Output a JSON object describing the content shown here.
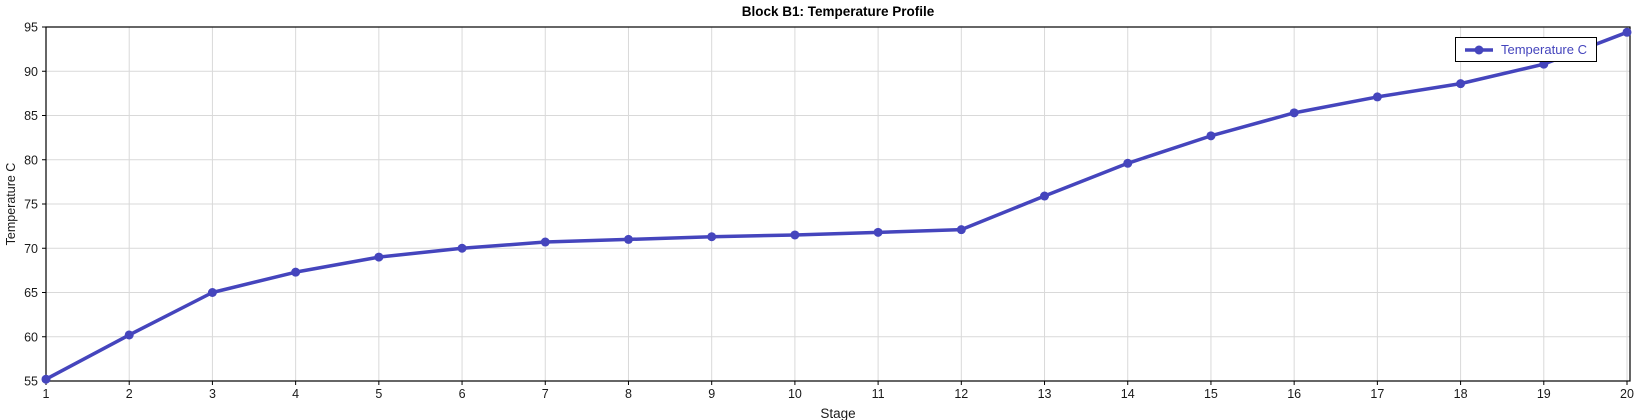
{
  "chart_data": {
    "type": "line",
    "title": "Block B1: Temperature Profile",
    "xlabel": "Stage",
    "ylabel": "Temperature C",
    "x": [
      1,
      2,
      3,
      4,
      5,
      6,
      7,
      8,
      9,
      10,
      11,
      12,
      13,
      14,
      15,
      16,
      17,
      18,
      19,
      20
    ],
    "series": [
      {
        "name": "Temperature C",
        "color": "#4545bd",
        "values": [
          55.2,
          60.2,
          65.0,
          67.3,
          69.0,
          70.0,
          70.7,
          71.0,
          71.3,
          71.5,
          71.8,
          72.1,
          75.9,
          79.6,
          82.7,
          85.3,
          87.1,
          88.6,
          90.8,
          94.4
        ]
      }
    ],
    "x_tick_labels": [
      "1",
      "2",
      "3",
      "4",
      "5",
      "6",
      "7",
      "8",
      "9",
      "10",
      "11",
      "12",
      "13",
      "14",
      "15",
      "16",
      "17",
      "18",
      "19",
      "20"
    ],
    "y_ticks": [
      55,
      60,
      65,
      70,
      75,
      80,
      85,
      90,
      95
    ],
    "xlim": [
      1,
      20
    ],
    "ylim": [
      55,
      95
    ],
    "grid": true,
    "legend_position": "top-right"
  },
  "colors": {
    "line": "#4545bd",
    "marker": "#4545bd",
    "grid": "#d9d9d9",
    "frame": "#000000",
    "tick": "#000000",
    "tick_text": "#1a1a1a",
    "legend_text": "#4545bd",
    "legend_border": "#000000",
    "legend_bg": "#ffffff"
  }
}
